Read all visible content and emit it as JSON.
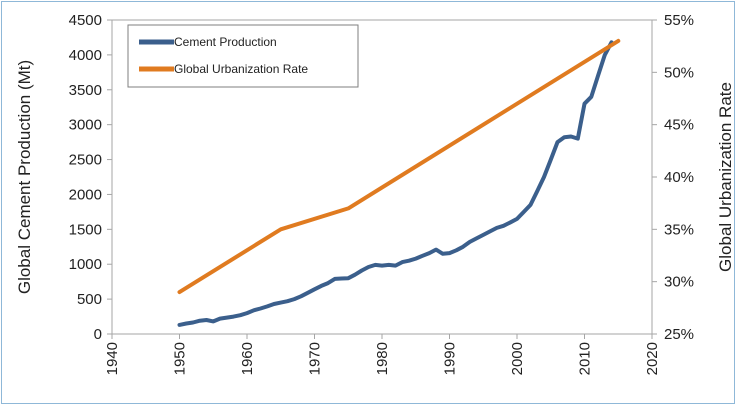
{
  "chart_data": {
    "type": "line",
    "title": "",
    "ylabel": "Global Cement Production (Mt)",
    "y2label": "Global Urbanization Rate",
    "xlim": [
      1940,
      2020
    ],
    "ylim": [
      0,
      4500
    ],
    "y2lim": [
      0.25,
      0.55
    ],
    "x_ticks": [
      "1940",
      "1950",
      "1960",
      "1970",
      "1980",
      "1990",
      "2000",
      "2010",
      "2020"
    ],
    "y_ticks": [
      "0",
      "500",
      "1000",
      "1500",
      "2000",
      "2500",
      "3000",
      "3500",
      "4000",
      "4500"
    ],
    "y2_ticks": [
      "25%",
      "30%",
      "35%",
      "40%",
      "45%",
      "50%",
      "55%"
    ],
    "grid": false,
    "legend_position": "top-left",
    "series": [
      {
        "name": "Cement Production",
        "axis": "left",
        "color": "#3b5f8c",
        "x": [
          1950,
          1951,
          1952,
          1953,
          1954,
          1955,
          1956,
          1957,
          1958,
          1959,
          1960,
          1961,
          1962,
          1963,
          1964,
          1965,
          1966,
          1967,
          1968,
          1969,
          1970,
          1971,
          1972,
          1973,
          1974,
          1975,
          1976,
          1977,
          1978,
          1979,
          1980,
          1981,
          1982,
          1983,
          1984,
          1985,
          1986,
          1987,
          1988,
          1989,
          1990,
          1991,
          1992,
          1993,
          1994,
          1995,
          1996,
          1997,
          1998,
          1999,
          2000,
          2001,
          2002,
          2003,
          2004,
          2005,
          2006,
          2007,
          2008,
          2009,
          2010,
          2011,
          2012,
          2013,
          2014
        ],
        "values": [
          130,
          150,
          165,
          190,
          200,
          180,
          220,
          235,
          250,
          270,
          300,
          340,
          365,
          395,
          430,
          450,
          470,
          500,
          540,
          590,
          640,
          690,
          730,
          790,
          795,
          800,
          850,
          910,
          960,
          990,
          980,
          990,
          980,
          1030,
          1050,
          1080,
          1120,
          1160,
          1210,
          1150,
          1160,
          1200,
          1250,
          1320,
          1370,
          1420,
          1470,
          1520,
          1550,
          1600,
          1650,
          1750,
          1850,
          2050,
          2250,
          2500,
          2750,
          2820,
          2830,
          2800,
          3300,
          3400,
          3700,
          4000,
          4180
        ]
      },
      {
        "name": "Global Urbanization Rate",
        "axis": "right",
        "color": "#e07b20",
        "x": [
          1950,
          1965,
          1975,
          2015
        ],
        "values": [
          0.29,
          0.35,
          0.37,
          0.53
        ]
      }
    ]
  }
}
